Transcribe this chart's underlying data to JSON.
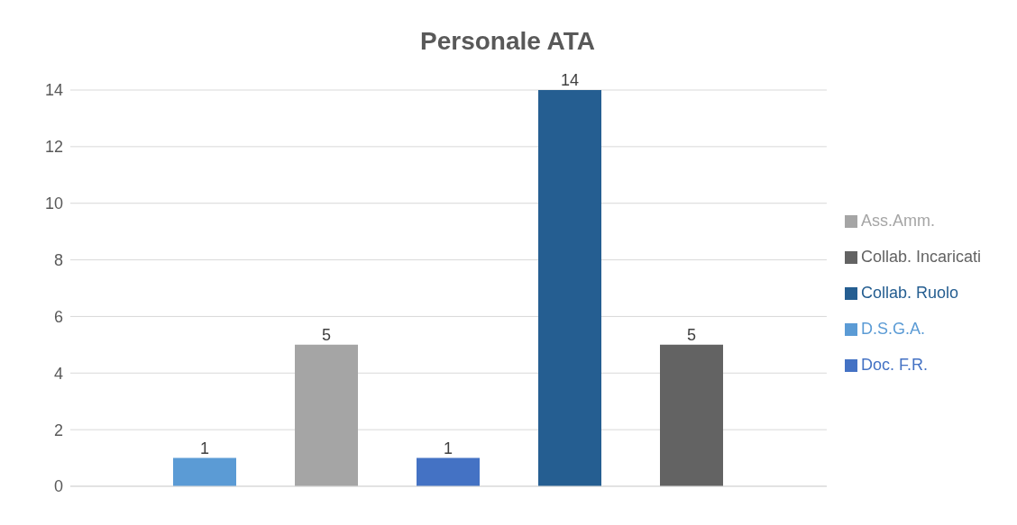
{
  "chart_data": {
    "type": "bar",
    "title": "Personale ATA",
    "categories": [
      null
    ],
    "series": [
      {
        "name": "D.S.G.A.",
        "color": "#5b9bd5",
        "values": [
          1
        ]
      },
      {
        "name": "Ass.Amm.",
        "color": "#a5a5a5",
        "values": [
          5
        ]
      },
      {
        "name": "Doc. F.R.",
        "color": "#4472c4",
        "values": [
          1
        ]
      },
      {
        "name": "Collab. Ruolo",
        "color": "#255e91",
        "values": [
          14
        ]
      },
      {
        "name": "Collab. Incaricati",
        "color": "#636363",
        "values": [
          5
        ]
      }
    ],
    "ylim": [
      0,
      14
    ],
    "yticks": [
      0,
      2,
      4,
      6,
      8,
      10,
      12,
      14
    ],
    "grid": "y",
    "legend": "right",
    "data_labels": true,
    "tick_labels": "y"
  }
}
